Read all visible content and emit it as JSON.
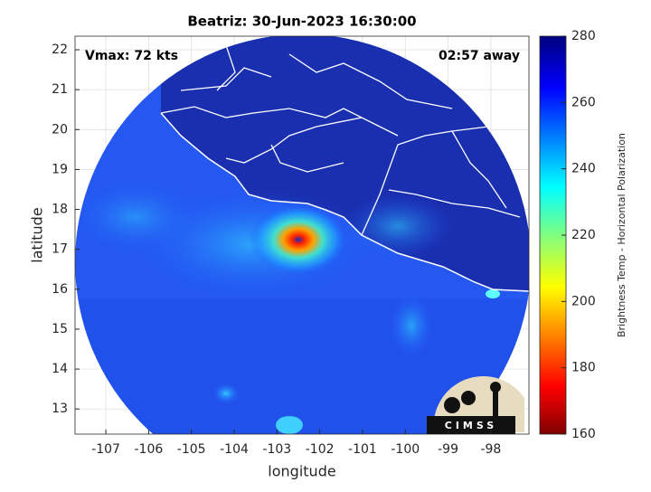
{
  "chart_data": {
    "type": "map",
    "title": "Beatriz: 30-Jun-2023 16:30:00",
    "annotations": [
      "Vmax: 72 kts",
      "02:57 away"
    ],
    "xlabel": "longitude",
    "ylabel": "latitude",
    "xlim": [
      -107.72,
      -97.11
    ],
    "ylim": [
      12.37,
      22.34
    ],
    "xticks": [
      -107,
      -106,
      -105,
      -104,
      -103,
      -102,
      -101,
      -100,
      -99,
      -98
    ],
    "yticks": [
      13,
      14,
      15,
      16,
      17,
      18,
      19,
      20,
      21,
      22
    ],
    "grid": true,
    "colorbar": {
      "label": "Brightness Temp - Horizontal Polarization",
      "clim": [
        160,
        280
      ],
      "ticks": [
        160,
        180,
        200,
        220,
        240,
        260,
        280
      ],
      "colormap": "jet"
    },
    "logo": "CIMSS"
  }
}
